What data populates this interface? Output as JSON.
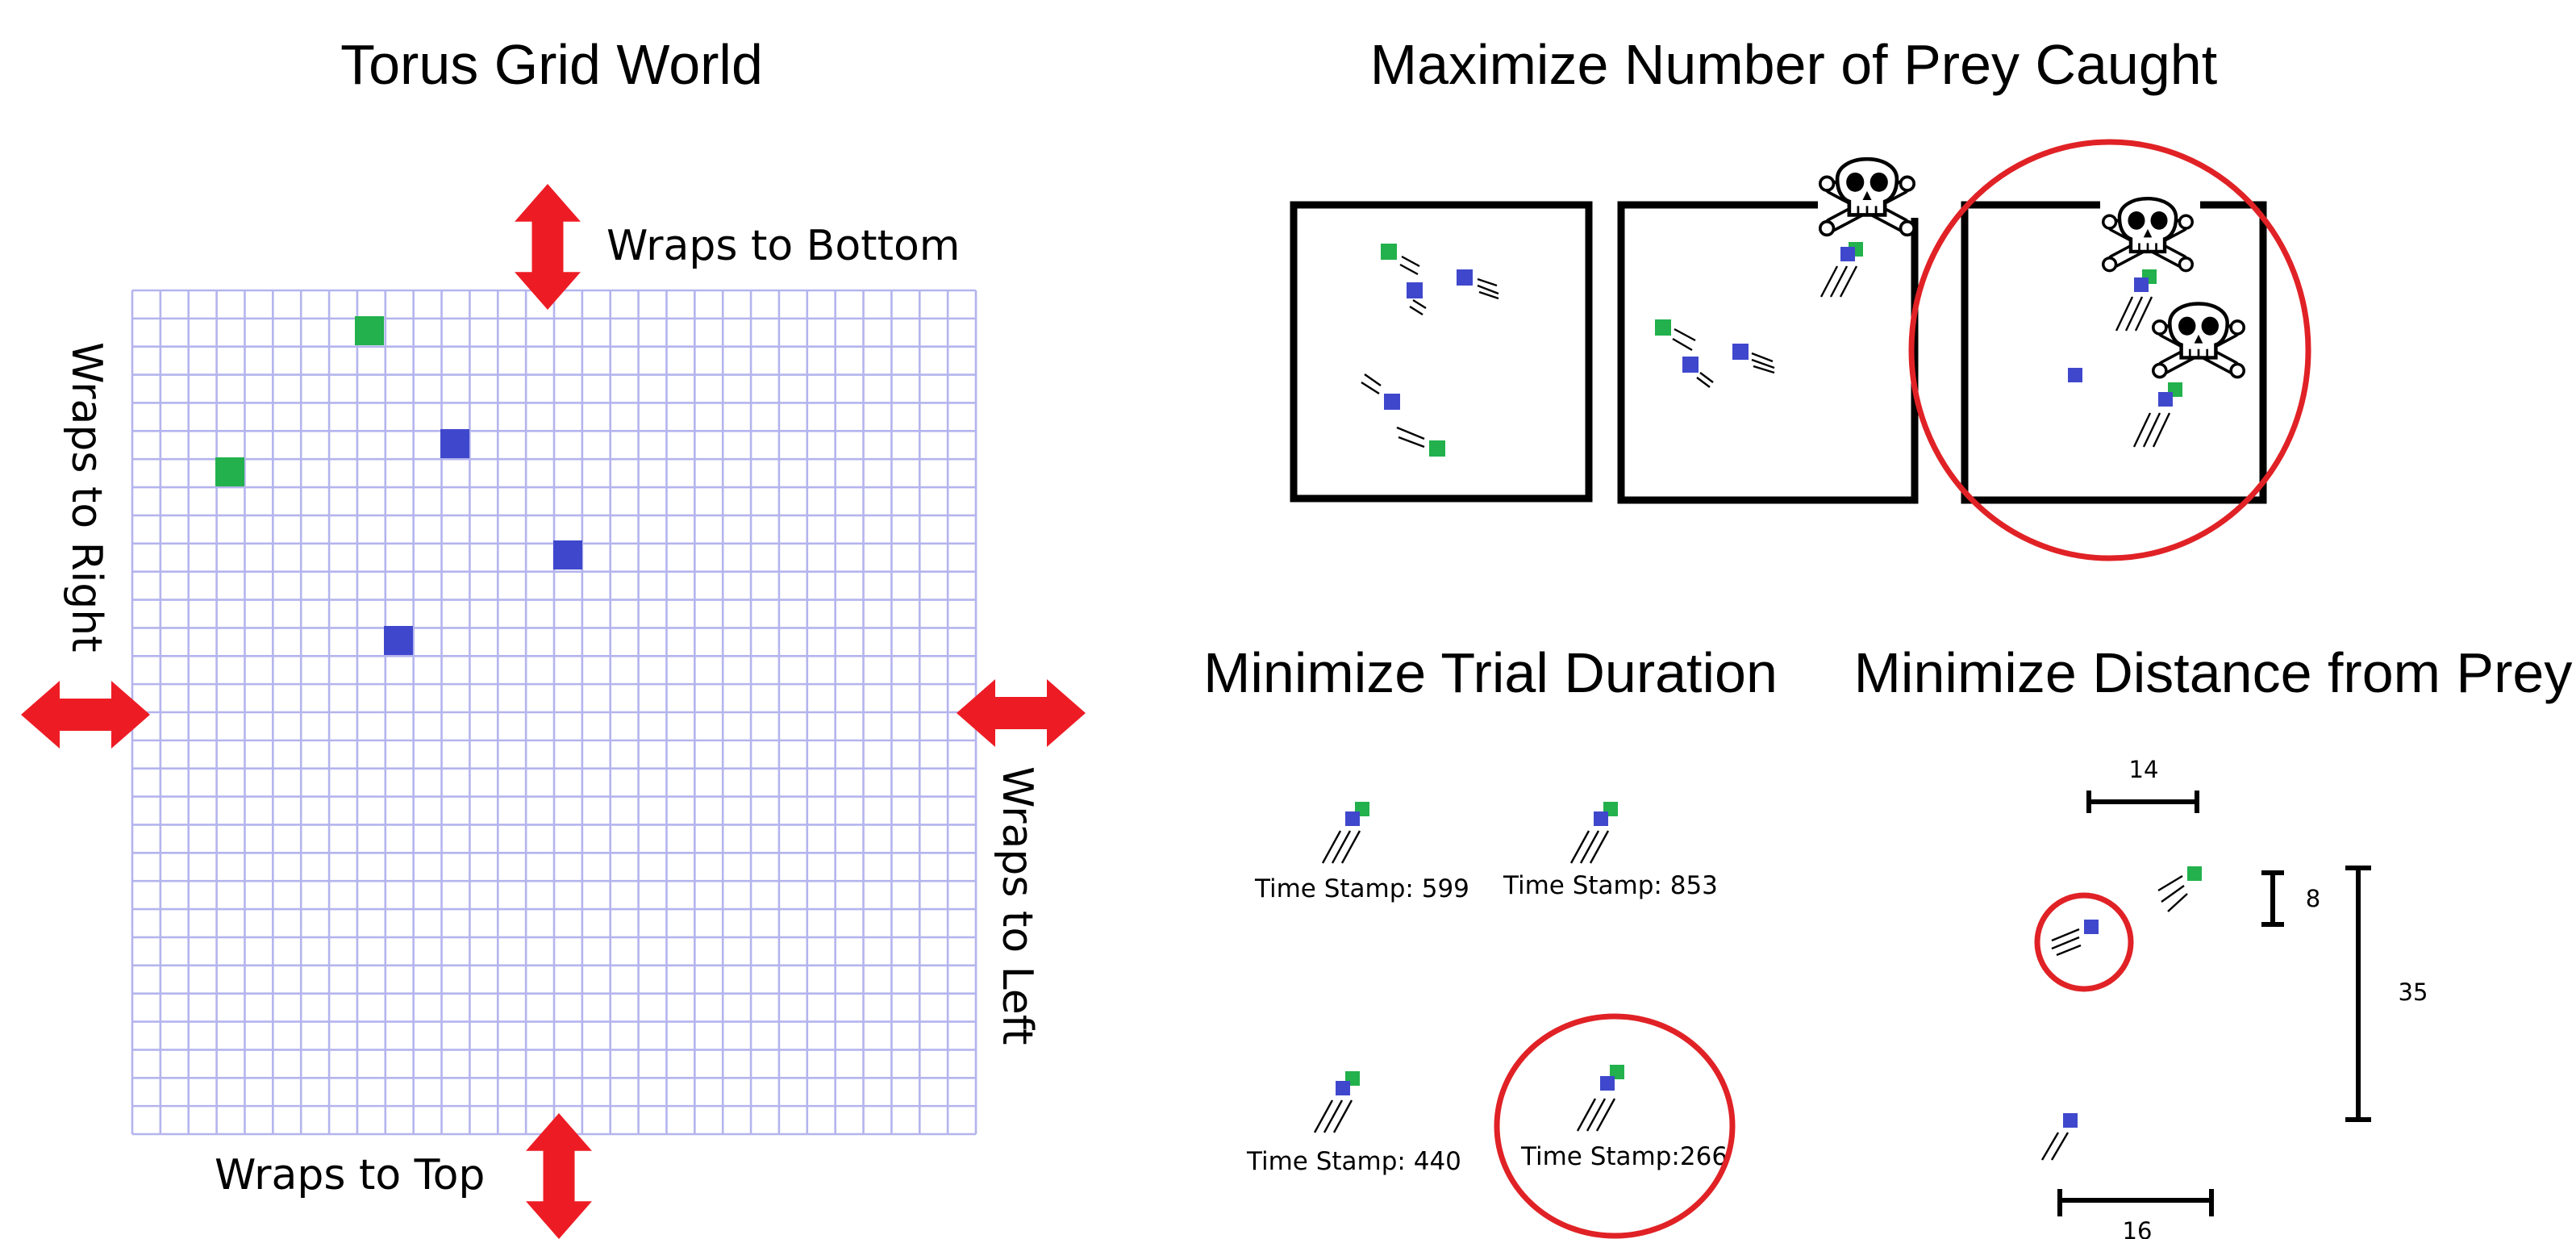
{
  "colors": {
    "predator": "#3f48cc",
    "prey": "#22b14c",
    "arrow": "#ed1c24",
    "grid": "#b4b4ee",
    "highlight": "#e02226"
  },
  "icons": {
    "arrow": "double-headed-arrow-icon",
    "capture": "skull-and-crossbones-icon"
  },
  "torus": {
    "title": "Torus Grid World",
    "wrap_bottom": "Wraps to Bottom",
    "wrap_top": "Wraps to Top",
    "wrap_right": "Wraps to Right",
    "wrap_left": "Wraps to Left"
  },
  "prey_caught": {
    "title": "Maximize Number of Prey Caught"
  },
  "duration": {
    "title": "Minimize Trial Duration",
    "timestamps": [
      "Time Stamp: 599",
      "Time Stamp: 853",
      "Time Stamp: 440",
      "Time Stamp:266"
    ]
  },
  "distance": {
    "title": "Minimize Distance from Prey",
    "measures": [
      "14",
      "8",
      "35",
      "16"
    ]
  }
}
